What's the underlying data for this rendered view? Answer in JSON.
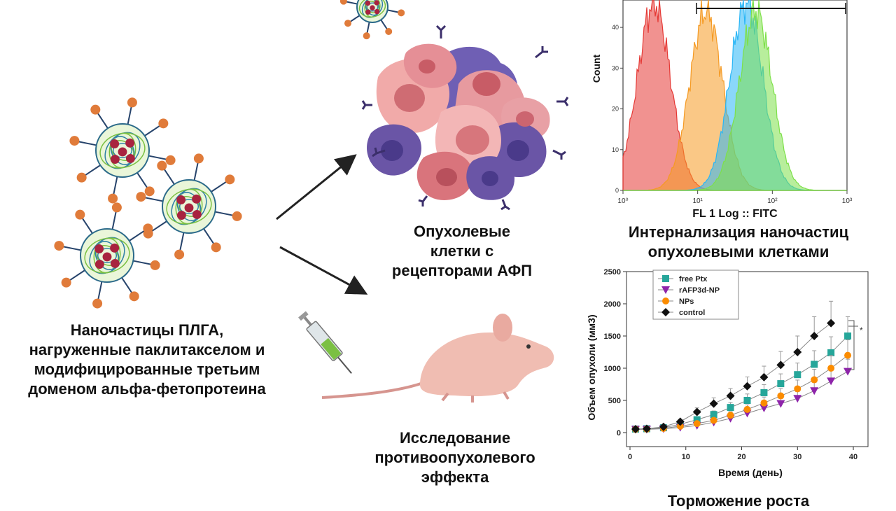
{
  "captions": {
    "nanoparticles": [
      "Наночастицы ПЛГА,",
      "нагруженные паклитакселом и",
      "модифицированные третьим",
      "доменом альфа-фетопротеина"
    ],
    "tumor_cells": [
      "Опухолевые",
      "клетки с",
      "рецепторами АФП"
    ],
    "internalization": [
      "Интернализация наночастиц",
      "опухолевыми клетками"
    ],
    "antitumor": [
      "Исследование",
      "противоопухолевого",
      "эффекта"
    ],
    "growth_inhibition": "Торможение роста"
  },
  "chart_data": [
    {
      "type": "area",
      "ylabel": "Count",
      "xlabel": "FL 1 Log :: FITC",
      "x_scale": "log",
      "xlim": [
        1,
        1000
      ],
      "x_ticks": [
        "10⁰",
        "10¹",
        "10²",
        "10³"
      ],
      "y_ticks": [
        "0",
        "10",
        "20",
        "30",
        "40"
      ],
      "ylim": [
        0,
        45
      ],
      "series": [
        {
          "color": "#e53935",
          "peak_x": 2.6,
          "peak_y": 46
        },
        {
          "color": "#f59a23",
          "peak_x": 13,
          "peak_y": 44
        },
        {
          "color": "#29b6f6",
          "peak_x": 45,
          "peak_y": 46
        },
        {
          "color": "#7ee04a",
          "peak_x": 60,
          "peak_y": 44
        }
      ]
    },
    {
      "type": "line",
      "xlabel": "Время (день)",
      "ylabel": "Объем опухоли (мм3)",
      "xlim": [
        0,
        42
      ],
      "ylim": [
        0,
        2500
      ],
      "x_ticks": [
        "0",
        "10",
        "20",
        "30",
        "40"
      ],
      "y_ticks": [
        "0",
        "500",
        "1000",
        "1500",
        "2000",
        "2500"
      ],
      "significance": "*",
      "series": [
        {
          "name": "free Ptx",
          "color": "#26a69a",
          "marker": "square",
          "x": [
            1,
            3,
            6,
            9,
            12,
            15,
            18,
            21,
            24,
            27,
            30,
            33,
            36,
            39
          ],
          "y": [
            55,
            60,
            75,
            130,
            200,
            280,
            390,
            500,
            620,
            760,
            900,
            1060,
            1240,
            1500
          ]
        },
        {
          "name": "rAFP3d-NP",
          "color": "#8e24aa",
          "marker": "triangle-down",
          "x": [
            1,
            3,
            6,
            9,
            12,
            15,
            18,
            21,
            24,
            27,
            30,
            33,
            36,
            39
          ],
          "y": [
            50,
            50,
            60,
            80,
            110,
            160,
            220,
            300,
            380,
            450,
            530,
            650,
            800,
            950
          ]
        },
        {
          "name": "NPs",
          "color": "#fb8c00",
          "marker": "circle",
          "x": [
            1,
            3,
            6,
            9,
            12,
            15,
            18,
            21,
            24,
            27,
            30,
            33,
            36,
            39
          ],
          "y": [
            52,
            55,
            65,
            100,
            140,
            190,
            270,
            360,
            460,
            570,
            680,
            820,
            1000,
            1200
          ]
        },
        {
          "name": "control",
          "color": "#111111",
          "marker": "diamond",
          "x": [
            1,
            3,
            6,
            9,
            12,
            15,
            18,
            21,
            24,
            27,
            30,
            33,
            36
          ],
          "y": [
            55,
            60,
            90,
            170,
            320,
            450,
            570,
            720,
            860,
            1050,
            1250,
            1500,
            1700
          ]
        }
      ]
    }
  ],
  "colors": {
    "arrow": "#222222",
    "np_arm": "#26436b",
    "np_ball": "#e07b3a",
    "np_core": "#7bc043",
    "drug": "#a8233f"
  }
}
